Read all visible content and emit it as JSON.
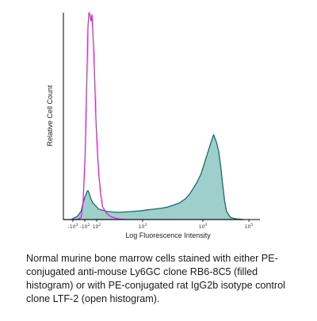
{
  "chart_data": {
    "type": "area",
    "xlabel": "Log Fluorescence Intensity",
    "ylabel": "Relative Cell Count",
    "x_scale": "biexponential",
    "x_ticks": [
      {
        "base": "-10",
        "exp": "3"
      },
      {
        "base": "-10",
        "exp": "2"
      },
      {
        "base": "10",
        "exp": "2"
      },
      {
        "base": "10",
        "exp": "3"
      },
      {
        "base": "10",
        "exp": "4"
      },
      {
        "base": "10",
        "exp": "5"
      }
    ],
    "xlim": [
      0,
      1
    ],
    "ylim": [
      0,
      100
    ],
    "grid": false,
    "legend": "none",
    "series": [
      {
        "fill": "#9fcfcc",
        "stroke": "#1a6b66",
        "style": "filled",
        "x": [
          0.0,
          0.04,
          0.07,
          0.09,
          0.1,
          0.11,
          0.12,
          0.125,
          0.13,
          0.14,
          0.15,
          0.16,
          0.17,
          0.18,
          0.2,
          0.22,
          0.24,
          0.26,
          0.28,
          0.3,
          0.33,
          0.36,
          0.4,
          0.43,
          0.46,
          0.5,
          0.53,
          0.56,
          0.59,
          0.62,
          0.64,
          0.66,
          0.68,
          0.7,
          0.71,
          0.72,
          0.73,
          0.74,
          0.75,
          0.76,
          0.765,
          0.77,
          0.78,
          0.79,
          0.8,
          0.81,
          0.82,
          0.83,
          0.85,
          0.88,
          0.92
        ],
        "y": [
          0,
          0,
          1.5,
          4,
          8,
          11,
          13.5,
          14,
          13,
          10,
          8,
          7,
          6,
          5,
          4.5,
          4,
          3.8,
          3.6,
          3.5,
          3.6,
          3.8,
          4,
          4.3,
          4.7,
          5,
          5.5,
          6,
          7,
          8,
          10,
          12,
          15,
          18,
          22,
          25,
          28,
          31,
          34,
          37,
          40,
          41,
          39.5,
          37,
          33,
          26,
          17,
          9,
          4,
          1,
          0.3,
          0
        ]
      },
      {
        "stroke": "#e020d8",
        "style": "open",
        "x": [
          0.04,
          0.07,
          0.09,
          0.1,
          0.11,
          0.12,
          0.125,
          0.13,
          0.135,
          0.14,
          0.145,
          0.15,
          0.155,
          0.16,
          0.165,
          0.17,
          0.18,
          0.19,
          0.2,
          0.22,
          0.24,
          0.26,
          0.28,
          0.32
        ],
        "y": [
          0,
          0,
          1,
          8,
          30,
          72,
          93,
          100,
          99,
          96,
          99,
          90,
          80,
          65,
          50,
          38,
          22,
          12,
          6,
          3,
          1.5,
          0.8,
          0.3,
          0
        ]
      }
    ]
  },
  "caption": "Normal murine bone marrow cells stained with either PE-conjugated anti-mouse Ly6GC clone RB6-8C5 (filled histogram) or with PE-conjugated rat IgG2b isotype control clone LTF-2 (open histogram)."
}
